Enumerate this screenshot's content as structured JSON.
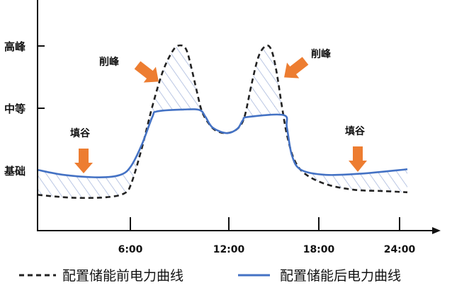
{
  "chart_data": {
    "type": "line",
    "title": "",
    "xlabel": "",
    "ylabel": "",
    "x_ticks": [
      {
        "value": 6,
        "label": "6:00"
      },
      {
        "value": 12,
        "label": "12:00"
      },
      {
        "value": 18,
        "label": "18:00"
      },
      {
        "value": 24,
        "label": "24:00"
      }
    ],
    "y_ticks": [
      {
        "value": 1,
        "label": "基础"
      },
      {
        "value": 2,
        "label": "中等"
      },
      {
        "value": 3,
        "label": "高峰"
      }
    ],
    "xlim": [
      0,
      25
    ],
    "ylim": [
      0,
      3.5
    ],
    "grid": false,
    "legend_position": "bottom",
    "hatch_color": "#A9B9DD",
    "series": [
      {
        "name": "配置储能前电力曲线",
        "style": "dashed",
        "color": "#222222",
        "x": [
          0,
          1.24,
          2.61,
          4.44,
          5.59,
          6.04,
          6.69,
          7.34,
          7.99,
          8.63,
          9.06,
          9.41,
          9.71,
          10.06,
          10.36,
          10.79,
          11.22,
          11.87,
          12.57,
          13.04,
          13.51,
          13.98,
          14.46,
          14.83,
          15.17,
          15.54,
          15.87,
          16.35,
          17.06,
          18.53,
          20.63,
          22.74,
          24.58
        ],
        "y": [
          0.61,
          0.58,
          0.56,
          0.57,
          0.63,
          0.78,
          1.35,
          2.03,
          2.6,
          2.94,
          3.01,
          2.94,
          2.66,
          2.26,
          1.95,
          1.75,
          1.64,
          1.6,
          1.67,
          1.86,
          2.38,
          2.83,
          3.0,
          2.94,
          2.6,
          2.03,
          1.58,
          1.18,
          0.95,
          0.78,
          0.69,
          0.67,
          0.65
        ]
      },
      {
        "name": "配置储能后电力曲线",
        "style": "solid",
        "color": "#4472C4",
        "x": [
          0,
          1.69,
          3.99,
          5.36,
          6.04,
          6.69,
          7.34,
          7.64,
          9.28,
          10.23,
          10.58,
          11.01,
          11.87,
          12.57,
          12.94,
          13.28,
          15.64,
          15.87,
          16.21,
          16.82,
          18.53,
          21.16,
          24.58
        ],
        "y": [
          1.01,
          0.93,
          0.89,
          0.93,
          1.07,
          1.41,
          1.86,
          1.95,
          1.98,
          1.97,
          1.86,
          1.69,
          1.6,
          1.67,
          1.81,
          1.86,
          1.89,
          1.69,
          1.24,
          1.01,
          0.93,
          0.95,
          1.02
        ]
      }
    ],
    "annotations": [
      {
        "text": "填谷",
        "arrow": "down",
        "color": "#ED7D31"
      },
      {
        "text": "削峰",
        "arrow": "down-right",
        "color": "#ED7D31"
      },
      {
        "text": "削峰",
        "arrow": "down-left",
        "color": "#ED7D31"
      },
      {
        "text": "填谷",
        "arrow": "down",
        "color": "#ED7D31"
      }
    ]
  }
}
